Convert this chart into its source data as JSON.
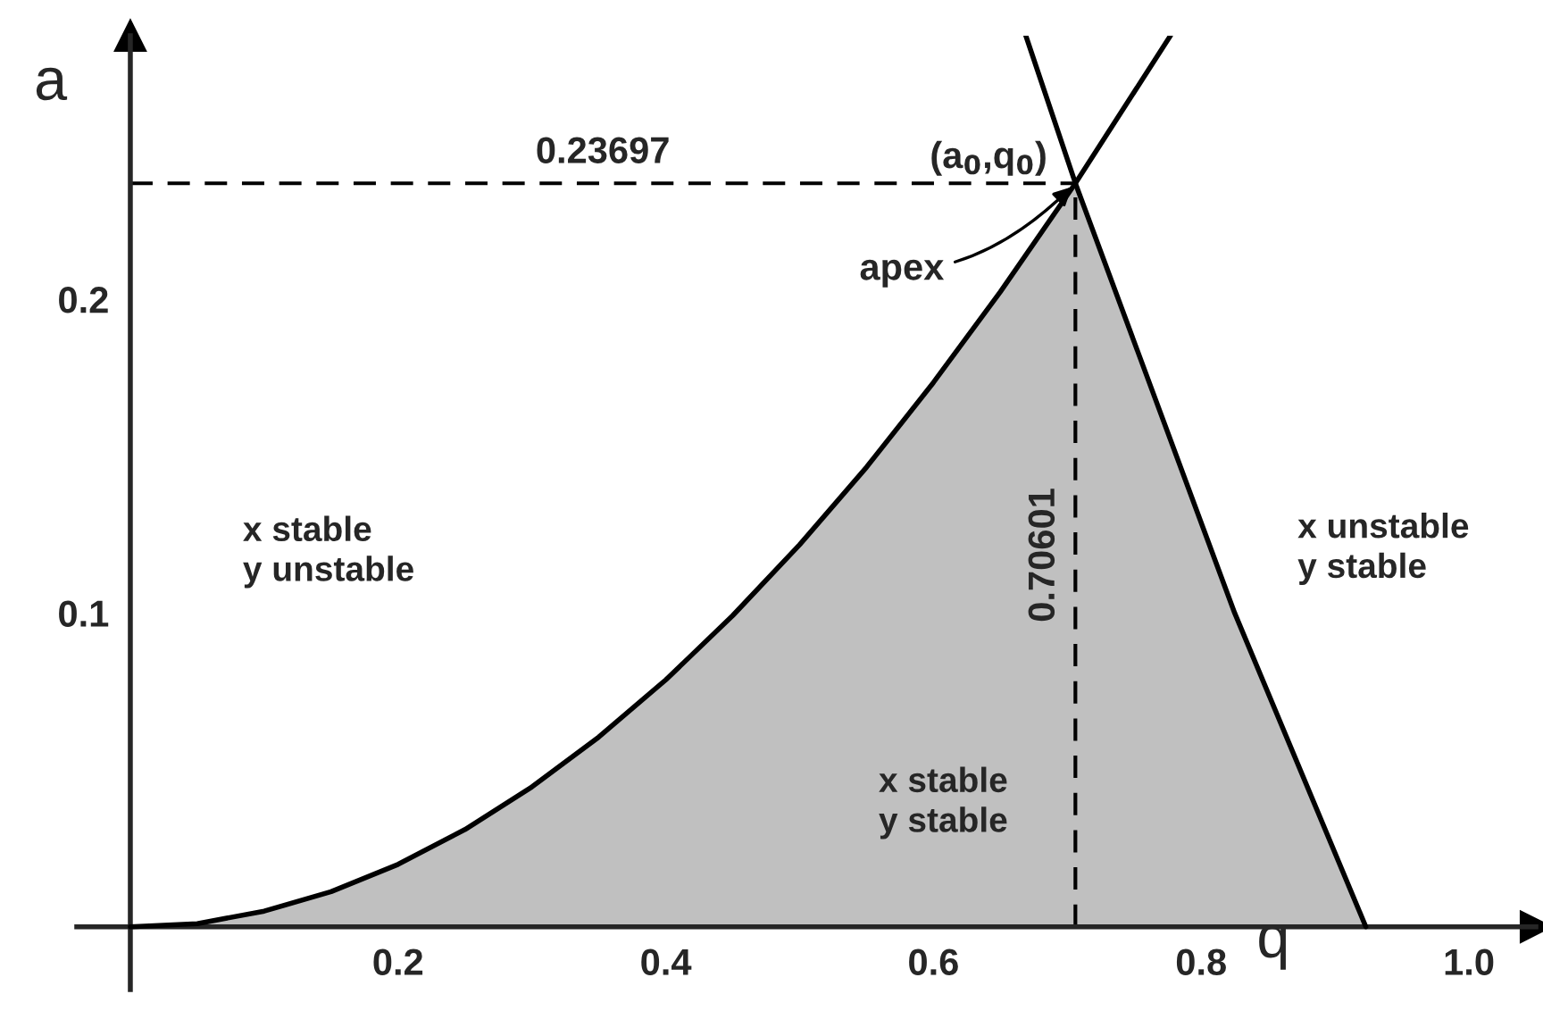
{
  "chart_data": {
    "type": "line",
    "xlabel": "q",
    "ylabel": "a",
    "xlim": [
      -0.04,
      1.05
    ],
    "ylim": [
      -0.02,
      0.284
    ],
    "xticks": [
      0.2,
      0.4,
      0.6,
      0.8,
      {
        "value": 1.0,
        "label": "1.0"
      }
    ],
    "yticks": [
      0.1,
      0.2
    ],
    "grid": false,
    "marker": "none",
    "line_style": "solid",
    "series": [
      {
        "type": "area",
        "color": "#c0c0c0",
        "x": [
          0,
          0.05,
          0.1,
          0.15,
          0.2,
          0.25,
          0.3,
          0.35,
          0.4,
          0.45,
          0.5,
          0.55,
          0.6,
          0.65,
          0.70601,
          0.825,
          0.923
        ],
        "values": [
          0,
          0.001,
          0.005,
          0.0112,
          0.0199,
          0.031,
          0.0446,
          0.0605,
          0.0787,
          0.0992,
          0.1218,
          0.1465,
          0.1735,
          0.2024,
          0.23697,
          0.1,
          0
        ]
      },
      {
        "color": "#000000",
        "x": [
          0,
          0.05,
          0.1,
          0.15,
          0.2,
          0.25,
          0.3,
          0.35,
          0.4,
          0.45,
          0.5,
          0.55,
          0.6,
          0.65,
          0.70601,
          0.777
        ],
        "values": [
          0,
          0.001,
          0.005,
          0.0112,
          0.0199,
          0.031,
          0.0446,
          0.0605,
          0.0787,
          0.0992,
          0.1218,
          0.1465,
          0.1735,
          0.2024,
          0.23697,
          0.284
        ]
      },
      {
        "color": "#000000",
        "x": [
          0.669,
          0.70601,
          0.825,
          0.923
        ],
        "values": [
          0.284,
          0.23697,
          0.1,
          0
        ]
      }
    ],
    "ref_lines": [
      {
        "axis": "y",
        "value": 0.23697,
        "label": "0.23697",
        "line_style": "dashed"
      },
      {
        "axis": "x",
        "value": 0.70601,
        "label": "0.70601",
        "line_style": "dashed"
      }
    ],
    "annotations": [
      "x stable\ny unstable",
      "x stable\ny stable",
      "x unstable\ny stable",
      {
        "text": "(a$_{0}$,q$_{0}$)",
        "x": 0.70601,
        "y": 0.23697
      },
      {
        "text": "apex",
        "x": 0.70601,
        "y": 0.23697
      }
    ]
  }
}
